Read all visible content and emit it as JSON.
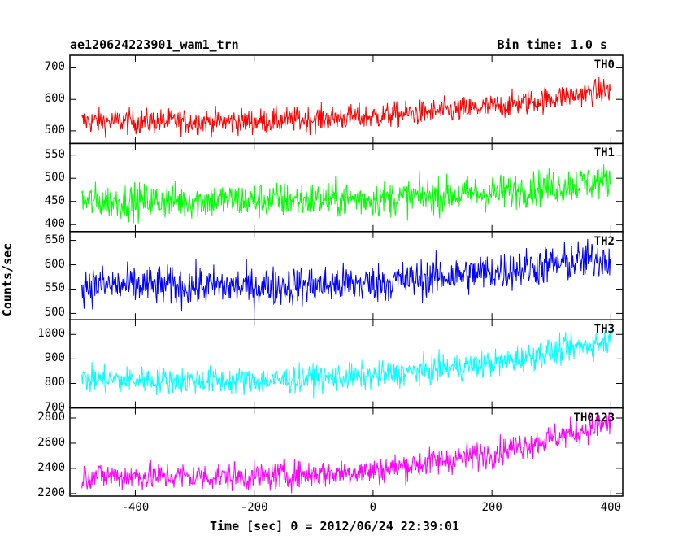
{
  "chart_data": {
    "type": "line",
    "title": "ae120624223901_wam1_trn",
    "subtitle": "Bin time: 1.0 s",
    "xlabel": "Time [sec] 0 = 2012/06/24 22:39:01",
    "ylabel": "Counts/sec",
    "xlim": [
      -510,
      420
    ],
    "x_ticks": [
      -400,
      -200,
      0,
      200,
      400
    ],
    "grid": false,
    "panels": [
      {
        "name": "TH0",
        "color": "#ff0000",
        "ylim": [
          460,
          740
        ],
        "y_ticks": [
          500,
          600,
          700
        ],
        "trend_x": [
          -490,
          -200,
          0,
          200,
          400
        ],
        "trend_y": [
          530,
          530,
          545,
          575,
          630
        ],
        "noise_amplitude": 40
      },
      {
        "name": "TH1",
        "color": "#00ff00",
        "ylim": [
          385,
          575
        ],
        "y_ticks": [
          400,
          450,
          500,
          550
        ],
        "trend_x": [
          -490,
          -200,
          0,
          200,
          400
        ],
        "trend_y": [
          450,
          452,
          455,
          468,
          495
        ],
        "noise_amplitude": 38
      },
      {
        "name": "TH2",
        "color": "#0000ff",
        "ylim": [
          487,
          668
        ],
        "y_ticks": [
          500,
          550,
          600,
          650
        ],
        "trend_x": [
          -490,
          -200,
          0,
          200,
          400
        ],
        "trend_y": [
          558,
          555,
          562,
          585,
          615
        ],
        "noise_amplitude": 40
      },
      {
        "name": "TH3",
        "color": "#00ffff",
        "ylim": [
          700,
          1060
        ],
        "y_ticks": [
          700,
          800,
          900,
          1000
        ],
        "trend_x": [
          -490,
          -200,
          0,
          200,
          400
        ],
        "trend_y": [
          815,
          810,
          830,
          880,
          975
        ],
        "noise_amplitude": 55
      },
      {
        "name": "TH0123",
        "color": "#ff00ff",
        "ylim": [
          2180,
          2880
        ],
        "y_ticks": [
          2200,
          2400,
          2600,
          2800
        ],
        "trend_x": [
          -490,
          -200,
          0,
          200,
          400
        ],
        "trend_y": [
          2340,
          2330,
          2380,
          2520,
          2760
        ],
        "noise_amplitude": 110
      }
    ]
  }
}
